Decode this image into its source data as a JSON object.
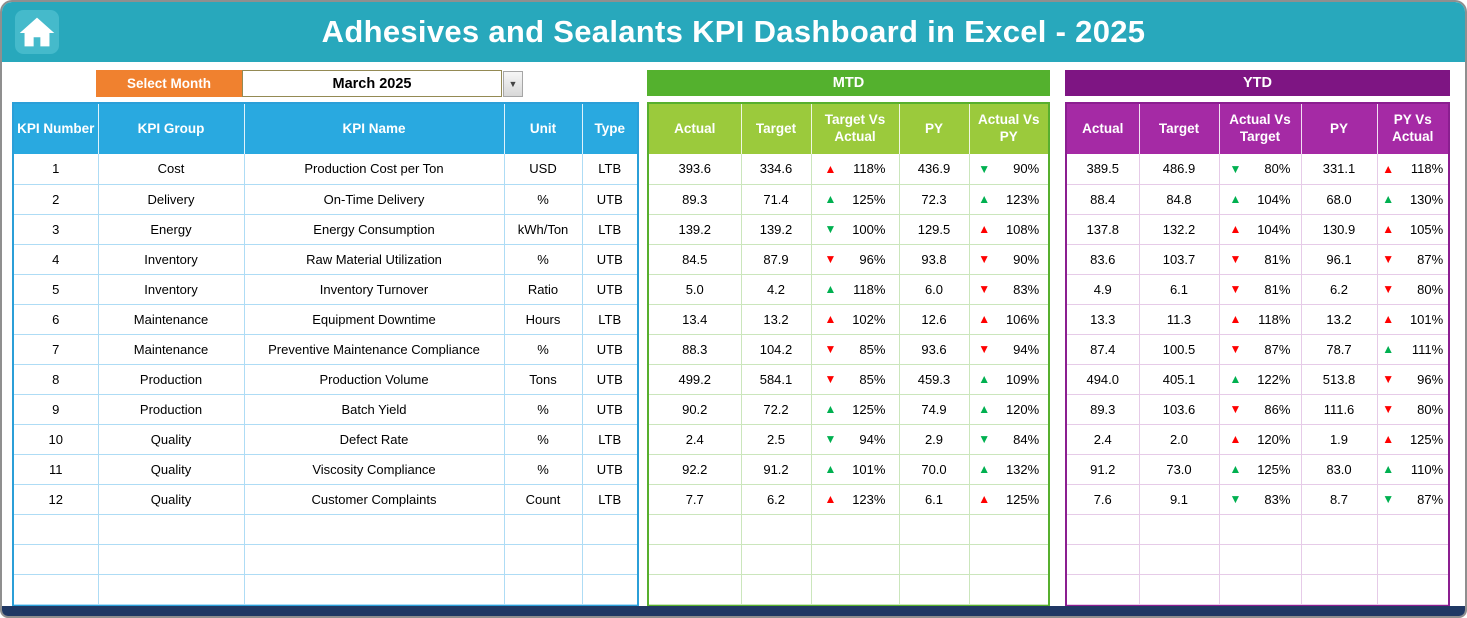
{
  "header": {
    "title": "Adhesives and Sealants KPI Dashboard in Excel - 2025"
  },
  "controls": {
    "select_month_label": "Select Month",
    "selected_month": "March 2025",
    "dropdown_icon": "▼"
  },
  "sections": {
    "mtd_label": "MTD",
    "ytd_label": "YTD"
  },
  "columns": {
    "left": [
      "KPI Number",
      "KPI Group",
      "KPI Name",
      "Unit",
      "Type"
    ],
    "mtd": [
      "Actual",
      "Target",
      "Target Vs Actual",
      "PY",
      "Actual Vs PY"
    ],
    "ytd": [
      "Actual",
      "Target",
      "Actual Vs Target",
      "PY",
      "PY Vs Actual"
    ]
  },
  "colors": {
    "titlebar_teal": "#28A8BC",
    "select_month_orange": "#F0812F",
    "left_header_blue": "#29A9E0",
    "mtd_band_green": "#54B12E",
    "mtd_header_green": "#9BCA3C",
    "ytd_band_purple": "#7E1583",
    "ytd_header_purple": "#A52AA5",
    "up_bad_red": "#FF0000",
    "good_green": "#00B050",
    "footer_navy": "#203864"
  },
  "empty_row_count": 3,
  "rows": [
    {
      "num": "1",
      "group": "Cost",
      "name": "Production Cost per Ton",
      "unit": "USD",
      "type": "LTB",
      "mtd": {
        "actual": "393.6",
        "target": "334.6",
        "target_vs_actual": {
          "dir": "up",
          "color": "red",
          "value": "118%"
        },
        "py": "436.9",
        "actual_vs_py": {
          "dir": "down",
          "color": "green",
          "value": "90%"
        }
      },
      "ytd": {
        "actual": "389.5",
        "target": "486.9",
        "actual_vs_target": {
          "dir": "down",
          "color": "green",
          "value": "80%"
        },
        "py": "331.1",
        "py_vs_actual": {
          "dir": "up",
          "color": "red",
          "value": "118%"
        }
      }
    },
    {
      "num": "2",
      "group": "Delivery",
      "name": "On-Time Delivery",
      "unit": "%",
      "type": "UTB",
      "mtd": {
        "actual": "89.3",
        "target": "71.4",
        "target_vs_actual": {
          "dir": "up",
          "color": "green",
          "value": "125%"
        },
        "py": "72.3",
        "actual_vs_py": {
          "dir": "up",
          "color": "green",
          "value": "123%"
        }
      },
      "ytd": {
        "actual": "88.4",
        "target": "84.8",
        "actual_vs_target": {
          "dir": "up",
          "color": "green",
          "value": "104%"
        },
        "py": "68.0",
        "py_vs_actual": {
          "dir": "up",
          "color": "green",
          "value": "130%"
        }
      }
    },
    {
      "num": "3",
      "group": "Energy",
      "name": "Energy Consumption",
      "unit": "kWh/Ton",
      "type": "LTB",
      "mtd": {
        "actual": "139.2",
        "target": "139.2",
        "target_vs_actual": {
          "dir": "down",
          "color": "green",
          "value": "100%"
        },
        "py": "129.5",
        "actual_vs_py": {
          "dir": "up",
          "color": "red",
          "value": "108%"
        }
      },
      "ytd": {
        "actual": "137.8",
        "target": "132.2",
        "actual_vs_target": {
          "dir": "up",
          "color": "red",
          "value": "104%"
        },
        "py": "130.9",
        "py_vs_actual": {
          "dir": "up",
          "color": "red",
          "value": "105%"
        }
      }
    },
    {
      "num": "4",
      "group": "Inventory",
      "name": "Raw Material Utilization",
      "unit": "%",
      "type": "UTB",
      "mtd": {
        "actual": "84.5",
        "target": "87.9",
        "target_vs_actual": {
          "dir": "down",
          "color": "red",
          "value": "96%"
        },
        "py": "93.8",
        "actual_vs_py": {
          "dir": "down",
          "color": "red",
          "value": "90%"
        }
      },
      "ytd": {
        "actual": "83.6",
        "target": "103.7",
        "actual_vs_target": {
          "dir": "down",
          "color": "red",
          "value": "81%"
        },
        "py": "96.1",
        "py_vs_actual": {
          "dir": "down",
          "color": "red",
          "value": "87%"
        }
      }
    },
    {
      "num": "5",
      "group": "Inventory",
      "name": "Inventory Turnover",
      "unit": "Ratio",
      "type": "UTB",
      "mtd": {
        "actual": "5.0",
        "target": "4.2",
        "target_vs_actual": {
          "dir": "up",
          "color": "green",
          "value": "118%"
        },
        "py": "6.0",
        "actual_vs_py": {
          "dir": "down",
          "color": "red",
          "value": "83%"
        }
      },
      "ytd": {
        "actual": "4.9",
        "target": "6.1",
        "actual_vs_target": {
          "dir": "down",
          "color": "red",
          "value": "81%"
        },
        "py": "6.2",
        "py_vs_actual": {
          "dir": "down",
          "color": "red",
          "value": "80%"
        }
      }
    },
    {
      "num": "6",
      "group": "Maintenance",
      "name": "Equipment Downtime",
      "unit": "Hours",
      "type": "LTB",
      "mtd": {
        "actual": "13.4",
        "target": "13.2",
        "target_vs_actual": {
          "dir": "up",
          "color": "red",
          "value": "102%"
        },
        "py": "12.6",
        "actual_vs_py": {
          "dir": "up",
          "color": "red",
          "value": "106%"
        }
      },
      "ytd": {
        "actual": "13.3",
        "target": "11.3",
        "actual_vs_target": {
          "dir": "up",
          "color": "red",
          "value": "118%"
        },
        "py": "13.2",
        "py_vs_actual": {
          "dir": "up",
          "color": "red",
          "value": "101%"
        }
      }
    },
    {
      "num": "7",
      "group": "Maintenance",
      "name": "Preventive Maintenance Compliance",
      "unit": "%",
      "type": "UTB",
      "mtd": {
        "actual": "88.3",
        "target": "104.2",
        "target_vs_actual": {
          "dir": "down",
          "color": "red",
          "value": "85%"
        },
        "py": "93.6",
        "actual_vs_py": {
          "dir": "down",
          "color": "red",
          "value": "94%"
        }
      },
      "ytd": {
        "actual": "87.4",
        "target": "100.5",
        "actual_vs_target": {
          "dir": "down",
          "color": "red",
          "value": "87%"
        },
        "py": "78.7",
        "py_vs_actual": {
          "dir": "up",
          "color": "green",
          "value": "111%"
        }
      }
    },
    {
      "num": "8",
      "group": "Production",
      "name": "Production Volume",
      "unit": "Tons",
      "type": "UTB",
      "mtd": {
        "actual": "499.2",
        "target": "584.1",
        "target_vs_actual": {
          "dir": "down",
          "color": "red",
          "value": "85%"
        },
        "py": "459.3",
        "actual_vs_py": {
          "dir": "up",
          "color": "green",
          "value": "109%"
        }
      },
      "ytd": {
        "actual": "494.0",
        "target": "405.1",
        "actual_vs_target": {
          "dir": "up",
          "color": "green",
          "value": "122%"
        },
        "py": "513.8",
        "py_vs_actual": {
          "dir": "down",
          "color": "red",
          "value": "96%"
        }
      }
    },
    {
      "num": "9",
      "group": "Production",
      "name": "Batch Yield",
      "unit": "%",
      "type": "UTB",
      "mtd": {
        "actual": "90.2",
        "target": "72.2",
        "target_vs_actual": {
          "dir": "up",
          "color": "green",
          "value": "125%"
        },
        "py": "74.9",
        "actual_vs_py": {
          "dir": "up",
          "color": "green",
          "value": "120%"
        }
      },
      "ytd": {
        "actual": "89.3",
        "target": "103.6",
        "actual_vs_target": {
          "dir": "down",
          "color": "red",
          "value": "86%"
        },
        "py": "111.6",
        "py_vs_actual": {
          "dir": "down",
          "color": "red",
          "value": "80%"
        }
      }
    },
    {
      "num": "10",
      "group": "Quality",
      "name": "Defect Rate",
      "unit": "%",
      "type": "LTB",
      "mtd": {
        "actual": "2.4",
        "target": "2.5",
        "target_vs_actual": {
          "dir": "down",
          "color": "green",
          "value": "94%"
        },
        "py": "2.9",
        "actual_vs_py": {
          "dir": "down",
          "color": "green",
          "value": "84%"
        }
      },
      "ytd": {
        "actual": "2.4",
        "target": "2.0",
        "actual_vs_target": {
          "dir": "up",
          "color": "red",
          "value": "120%"
        },
        "py": "1.9",
        "py_vs_actual": {
          "dir": "up",
          "color": "red",
          "value": "125%"
        }
      }
    },
    {
      "num": "11",
      "group": "Quality",
      "name": "Viscosity Compliance",
      "unit": "%",
      "type": "UTB",
      "mtd": {
        "actual": "92.2",
        "target": "91.2",
        "target_vs_actual": {
          "dir": "up",
          "color": "green",
          "value": "101%"
        },
        "py": "70.0",
        "actual_vs_py": {
          "dir": "up",
          "color": "green",
          "value": "132%"
        }
      },
      "ytd": {
        "actual": "91.2",
        "target": "73.0",
        "actual_vs_target": {
          "dir": "up",
          "color": "green",
          "value": "125%"
        },
        "py": "83.0",
        "py_vs_actual": {
          "dir": "up",
          "color": "green",
          "value": "110%"
        }
      }
    },
    {
      "num": "12",
      "group": "Quality",
      "name": "Customer Complaints",
      "unit": "Count",
      "type": "LTB",
      "mtd": {
        "actual": "7.7",
        "target": "6.2",
        "target_vs_actual": {
          "dir": "up",
          "color": "red",
          "value": "123%"
        },
        "py": "6.1",
        "actual_vs_py": {
          "dir": "up",
          "color": "red",
          "value": "125%"
        }
      },
      "ytd": {
        "actual": "7.6",
        "target": "9.1",
        "actual_vs_target": {
          "dir": "down",
          "color": "green",
          "value": "83%"
        },
        "py": "8.7",
        "py_vs_actual": {
          "dir": "down",
          "color": "green",
          "value": "87%"
        }
      }
    }
  ]
}
